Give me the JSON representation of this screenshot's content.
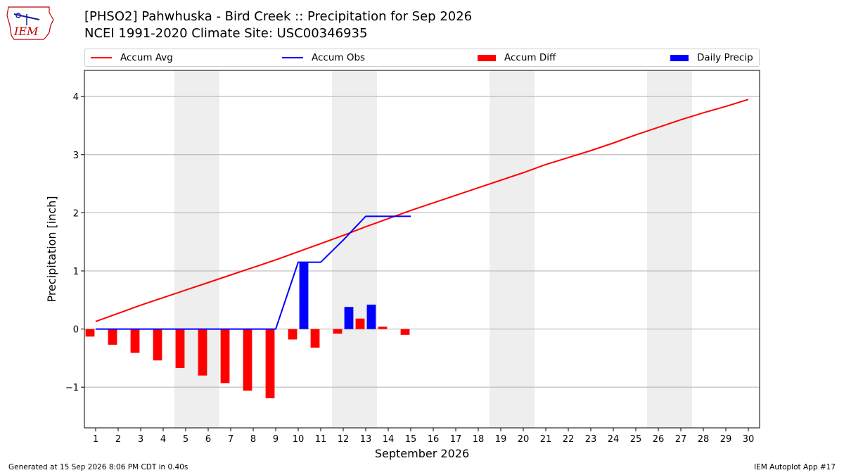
{
  "header": {
    "title_line1": "[PHSO2] Pahwhuska - Bird Creek :: Precipitation for Sep 2026",
    "title_line2": "NCEI 1991-2020 Climate Site: USC00346935",
    "logo_text": "IEM"
  },
  "footer": {
    "generated": "Generated at 15 Sep 2026 8:06 PM CDT in 0.40s",
    "app": "IEM Autoplot App #17"
  },
  "colors": {
    "avg": "#ff0000",
    "obs": "#0000ff",
    "diff": "#ff0000",
    "daily": "#0000ff",
    "weekend": "#eeeeee",
    "grid": "#b0b0b0"
  },
  "chart_data": {
    "type": "bar",
    "xlabel": "September 2026",
    "ylabel": "Precipitation [inch]",
    "xlim": [
      0.5,
      30.5
    ],
    "ylim": [
      -1.7,
      4.45
    ],
    "yticks": [
      -1,
      0,
      1,
      2,
      3,
      4
    ],
    "ytick_labels": [
      "−1",
      "0",
      "1",
      "2",
      "3",
      "4"
    ],
    "days": [
      1,
      2,
      3,
      4,
      5,
      6,
      7,
      8,
      9,
      10,
      11,
      12,
      13,
      14,
      15,
      16,
      17,
      18,
      19,
      20,
      21,
      22,
      23,
      24,
      25,
      26,
      27,
      28,
      29,
      30
    ],
    "grid": true,
    "legend_location": "top",
    "weekend_spans": [
      [
        4.5,
        6.5
      ],
      [
        11.5,
        13.5
      ],
      [
        18.5,
        20.5
      ],
      [
        25.5,
        27.5
      ]
    ],
    "series": [
      {
        "name": "Accum Avg",
        "kind": "line",
        "days": [
          1,
          2,
          3,
          4,
          5,
          6,
          7,
          8,
          9,
          10,
          11,
          12,
          13,
          14,
          15,
          16,
          17,
          18,
          19,
          20,
          21,
          22,
          23,
          24,
          25,
          26,
          27,
          28,
          29,
          30
        ],
        "values": [
          0.13,
          0.27,
          0.41,
          0.54,
          0.67,
          0.8,
          0.93,
          1.06,
          1.19,
          1.33,
          1.47,
          1.61,
          1.76,
          1.9,
          2.04,
          2.17,
          2.3,
          2.43,
          2.56,
          2.69,
          2.83,
          2.95,
          3.07,
          3.2,
          3.34,
          3.47,
          3.6,
          3.72,
          3.83,
          3.95
        ]
      },
      {
        "name": "Accum Obs",
        "kind": "line",
        "days": [
          1,
          2,
          3,
          4,
          5,
          6,
          7,
          8,
          9,
          10,
          11,
          12,
          13,
          14,
          15
        ],
        "values": [
          0,
          0,
          0,
          0,
          0,
          0,
          0,
          0,
          0,
          1.15,
          1.15,
          1.53,
          1.94,
          1.94,
          1.94
        ]
      },
      {
        "name": "Accum Diff",
        "kind": "bar",
        "offset": -0.25,
        "days": [
          1,
          2,
          3,
          4,
          5,
          6,
          7,
          8,
          9,
          10,
          11,
          12,
          13,
          14,
          15
        ],
        "values": [
          -0.13,
          -0.27,
          -0.41,
          -0.54,
          -0.67,
          -0.8,
          -0.93,
          -1.06,
          -1.19,
          -0.18,
          -0.32,
          -0.08,
          0.18,
          0.04,
          -0.1
        ]
      },
      {
        "name": "Daily Precip",
        "kind": "bar",
        "offset": 0.25,
        "days": [
          10,
          12,
          13
        ],
        "values": [
          1.15,
          0.38,
          0.42
        ]
      }
    ]
  }
}
